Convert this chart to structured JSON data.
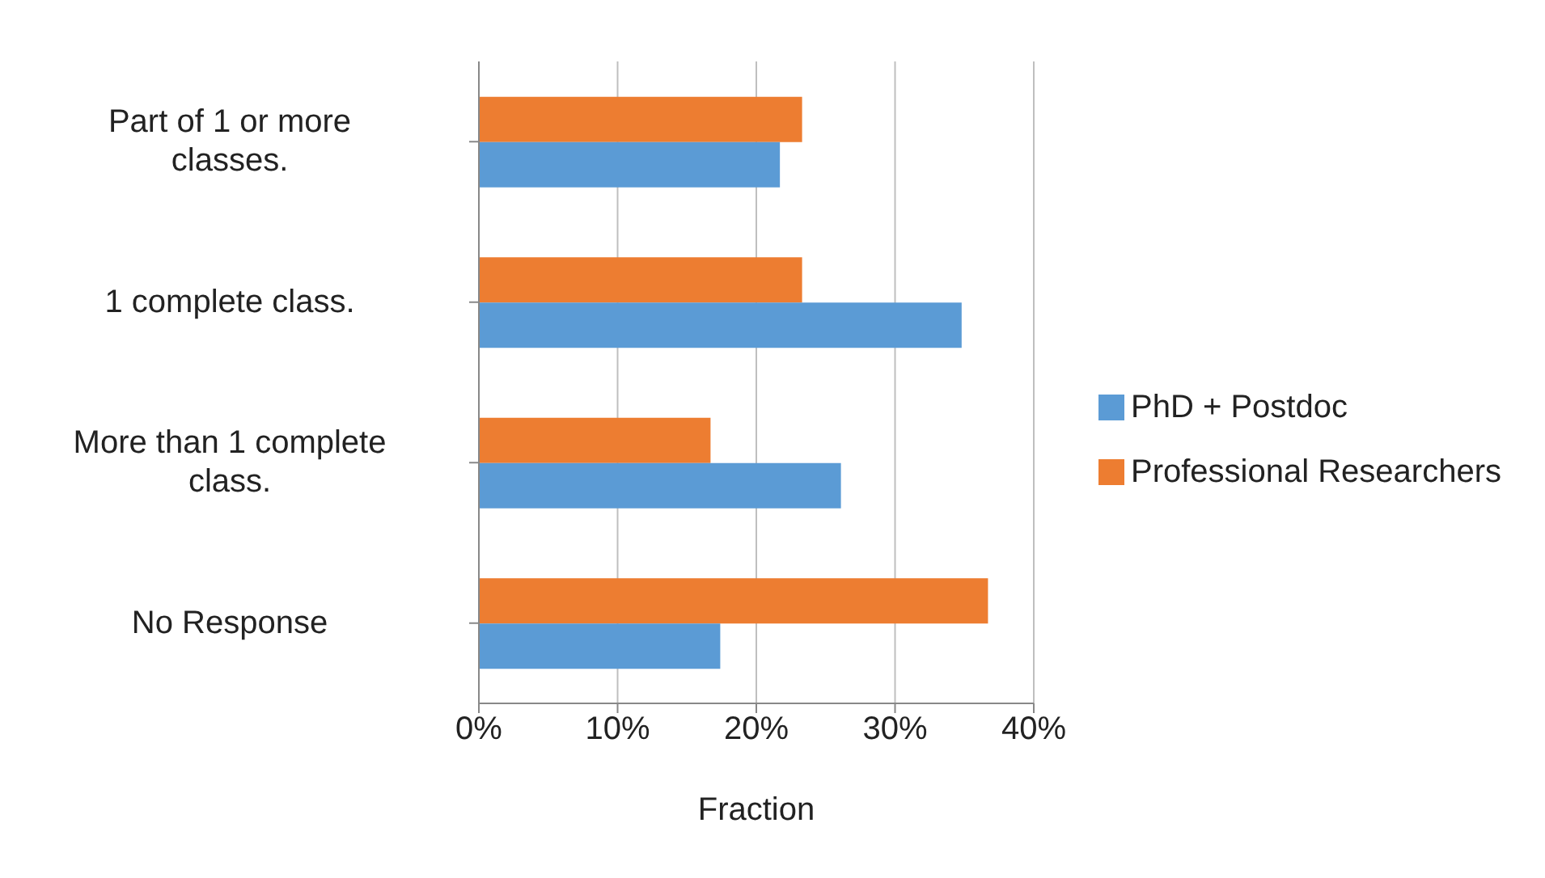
{
  "chart_data": {
    "type": "bar",
    "orientation": "horizontal",
    "xlabel": "Fraction",
    "categories": [
      "Part of 1 or more classes.",
      "1 complete class.",
      "More than 1 complete class.",
      "No Response"
    ],
    "series": [
      {
        "name": "Professional Researchers",
        "color": "#ed7d31",
        "values": [
          23.3,
          23.3,
          16.7,
          36.7
        ]
      },
      {
        "name": "PhD + Postdoc",
        "color": "#5b9bd5",
        "values": [
          21.7,
          34.8,
          26.1,
          17.4
        ]
      }
    ],
    "xlim": [
      0,
      40
    ],
    "xticks": [
      {
        "value": 0,
        "label": "0%"
      },
      {
        "value": 10,
        "label": "10%"
      },
      {
        "value": 20,
        "label": "20%"
      },
      {
        "value": 30,
        "label": "30%"
      },
      {
        "value": 40,
        "label": "40%"
      }
    ],
    "grid": "x",
    "legend": "right"
  }
}
